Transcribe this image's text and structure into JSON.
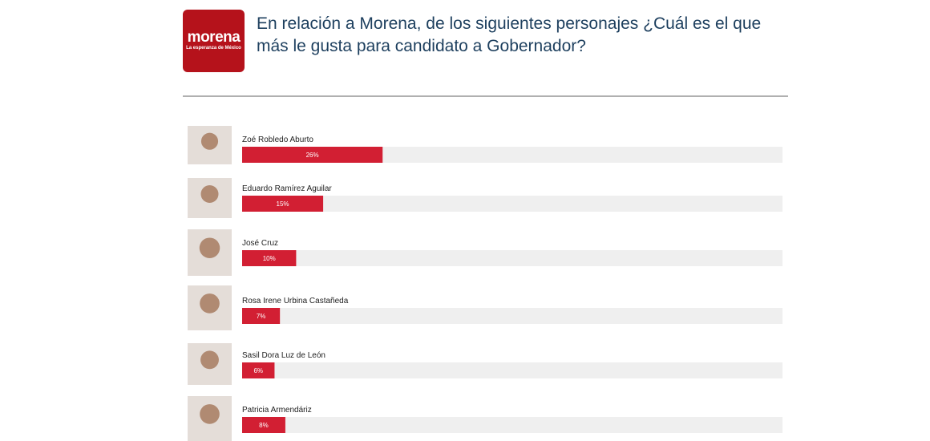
{
  "logo": {
    "name": "morena",
    "tagline": "La esperanza de México"
  },
  "chart_data": {
    "type": "bar",
    "orientation": "horizontal",
    "title": "En relación a Morena, de los siguientes personajes ¿Cuál es el que más le gusta para candidato a Gobernador?",
    "categories": [
      "Zoé Robledo Aburto",
      "Eduardo Ramírez Aguilar",
      "José Cruz",
      "Rosa Irene Urbina Castañeda",
      "Sasil Dora Luz de León",
      "Patricia Armendáriz"
    ],
    "values": [
      26,
      15,
      10,
      7,
      6,
      8
    ],
    "value_labels": [
      "26%",
      "15%",
      "10%",
      "7%",
      "6%",
      "8%"
    ],
    "xlim": [
      0,
      100
    ],
    "color": "#d21f33",
    "track_color": "#efefef"
  }
}
